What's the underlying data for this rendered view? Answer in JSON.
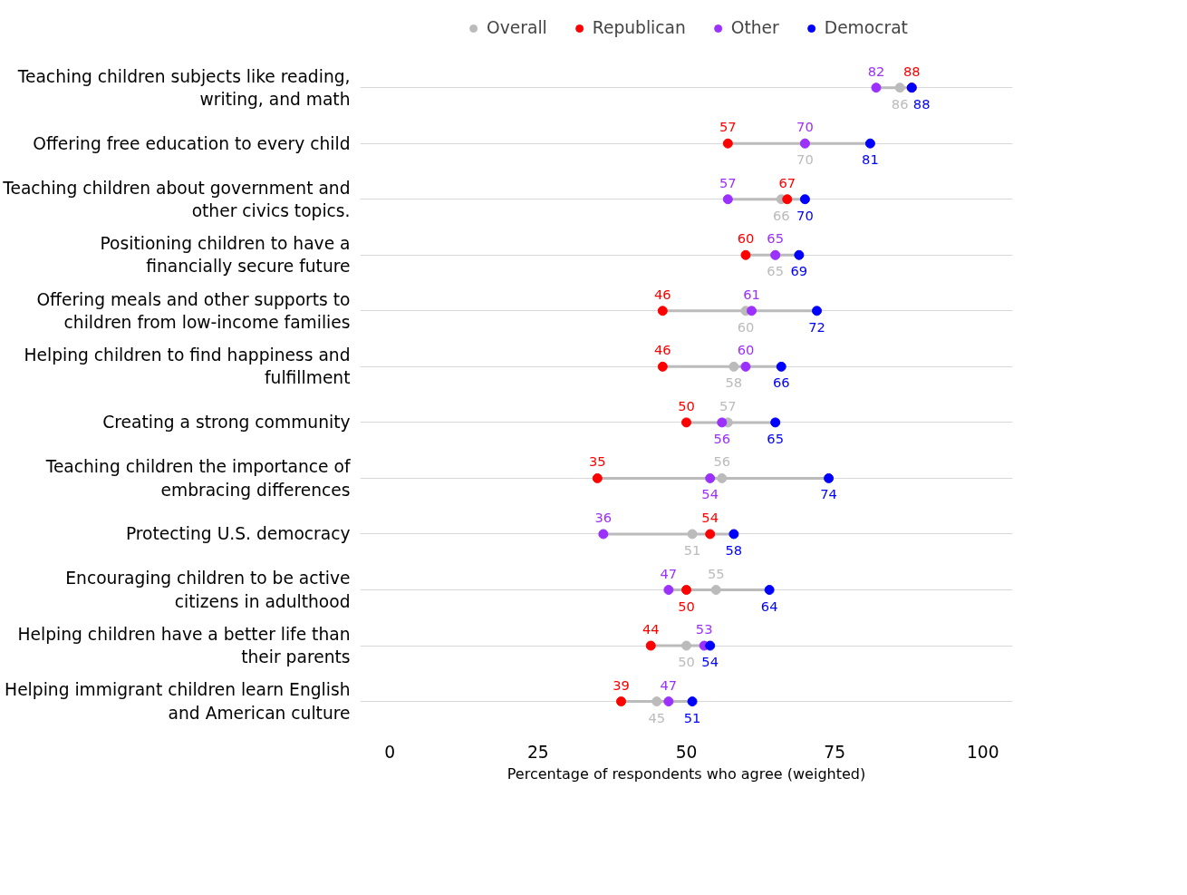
{
  "chart_data": {
    "type": "scatter",
    "orientation": "horizontal",
    "xlabel": "Percentage of respondents who agree (weighted)",
    "categories": [
      "Teaching children subjects like reading, writing, and math",
      "Offering free education to every child",
      "Teaching children about government and other civics topics.",
      "Positioning children to have a financially secure future",
      "Offering meals and other supports to children from low-income families",
      "Helping children to find happiness and fulfillment",
      "Creating a strong community",
      "Teaching children the importance of embracing differences",
      "Protecting U.S. democracy",
      "Encouraging children to be active citizens in adulthood",
      "Helping children have a better life than their parents",
      "Helping immigrant children learn English and American culture"
    ],
    "series": [
      {
        "name": "Overall",
        "color": "#bbbbbb",
        "values": [
          86,
          70,
          66,
          65,
          60,
          58,
          57,
          56,
          51,
          55,
          50,
          45
        ]
      },
      {
        "name": "Republican",
        "color": "#ff0000",
        "values": [
          88,
          57,
          67,
          60,
          46,
          46,
          50,
          35,
          54,
          50,
          44,
          39
        ]
      },
      {
        "name": "Other",
        "color": "#9b30ff",
        "values": [
          82,
          70,
          57,
          65,
          61,
          60,
          56,
          54,
          36,
          47,
          53,
          47
        ]
      },
      {
        "name": "Democrat",
        "color": "#0000ff",
        "values": [
          88,
          81,
          70,
          69,
          72,
          66,
          65,
          74,
          58,
          64,
          54,
          51
        ]
      }
    ],
    "xlim": [
      -5,
      105
    ],
    "xticks": [
      0,
      25,
      50,
      75,
      100
    ],
    "grid": "y",
    "legend": "top",
    "marker": "circle",
    "data_labels": true
  }
}
